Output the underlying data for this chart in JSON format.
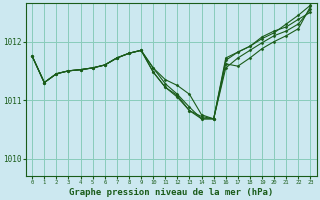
{
  "background_color": "#cce8f0",
  "plot_bg_color": "#cce8f0",
  "grid_color": "#88ccbb",
  "line_color": "#1a5c1a",
  "marker_color": "#1a5c1a",
  "xlabel": "Graphe pression niveau de la mer (hPa)",
  "xlabel_fontsize": 6.5,
  "ylim": [
    1009.7,
    1012.65
  ],
  "xlim": [
    -0.5,
    23.5
  ],
  "yticks": [
    1010,
    1011,
    1012
  ],
  "xticks": [
    0,
    1,
    2,
    3,
    4,
    5,
    6,
    7,
    8,
    9,
    10,
    11,
    12,
    13,
    14,
    15,
    16,
    17,
    18,
    19,
    20,
    21,
    22,
    23
  ],
  "series": [
    [
      1011.75,
      1011.3,
      1011.45,
      1011.5,
      1011.52,
      1011.55,
      1011.6,
      1011.72,
      1011.8,
      1011.85,
      1011.55,
      1011.35,
      1011.25,
      1011.1,
      1010.75,
      1010.68,
      1011.68,
      1011.82,
      1011.92,
      1012.08,
      1012.18,
      1012.25,
      1012.38,
      1012.5
    ],
    [
      1011.75,
      1011.3,
      1011.45,
      1011.5,
      1011.52,
      1011.55,
      1011.6,
      1011.72,
      1011.8,
      1011.85,
      1011.55,
      1011.28,
      1011.1,
      1010.88,
      1010.68,
      1010.68,
      1011.55,
      1011.72,
      1011.85,
      1011.98,
      1012.1,
      1012.18,
      1012.3,
      1012.55
    ],
    [
      1011.75,
      1011.3,
      1011.45,
      1011.5,
      1011.52,
      1011.55,
      1011.6,
      1011.72,
      1011.8,
      1011.85,
      1011.48,
      1011.22,
      1011.05,
      1010.82,
      1010.68,
      1010.68,
      1011.62,
      1011.58,
      1011.72,
      1011.88,
      1012.0,
      1012.1,
      1012.22,
      1012.6
    ],
    [
      1011.75,
      1011.3,
      1011.45,
      1011.5,
      1011.52,
      1011.55,
      1011.6,
      1011.72,
      1011.8,
      1011.85,
      1011.48,
      1011.22,
      1011.08,
      1010.82,
      1010.72,
      1010.68,
      1011.72,
      1011.82,
      1011.92,
      1012.05,
      1012.15,
      1012.3,
      1012.45,
      1012.62
    ]
  ]
}
